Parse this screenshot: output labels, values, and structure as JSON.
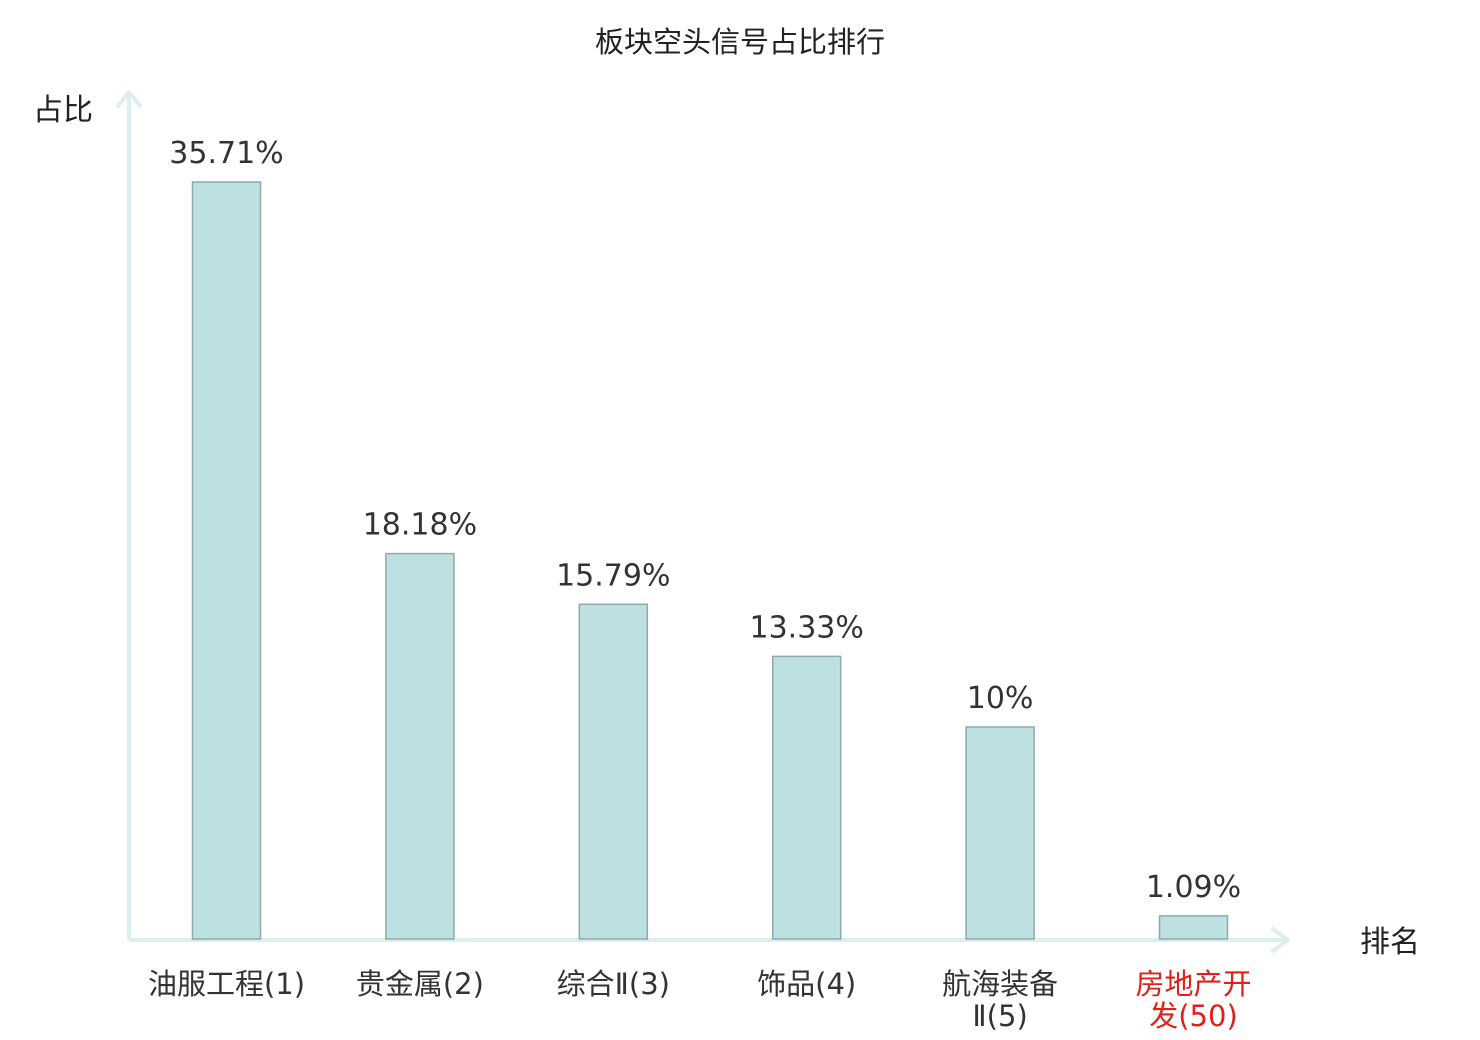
{
  "chart_data": {
    "type": "bar",
    "title": "板块空头信号占比排行",
    "ylabel": "占比",
    "xlabel": "排名",
    "ylim": [
      0,
      40
    ],
    "categories": [
      [
        "油服工程(1)"
      ],
      [
        "贵金属(2)"
      ],
      [
        "综合Ⅱ(3)"
      ],
      [
        "饰品(4)"
      ],
      [
        "航海装备",
        "Ⅱ(5)"
      ],
      [
        "房地产开",
        "发(50)"
      ]
    ],
    "values": [
      35.71,
      18.18,
      15.79,
      13.33,
      10,
      1.09
    ],
    "value_labels": [
      "35.71%",
      "18.18%",
      "15.79%",
      "13.33%",
      "10%",
      "1.09%"
    ],
    "highlight_index": 5,
    "grid": false,
    "colors": {
      "bar_fill": "#bde0e3",
      "bar_stroke": "#8fa9ab",
      "axis": "#dcefee",
      "highlight_text": "#e0201a",
      "text": "#333333"
    }
  }
}
